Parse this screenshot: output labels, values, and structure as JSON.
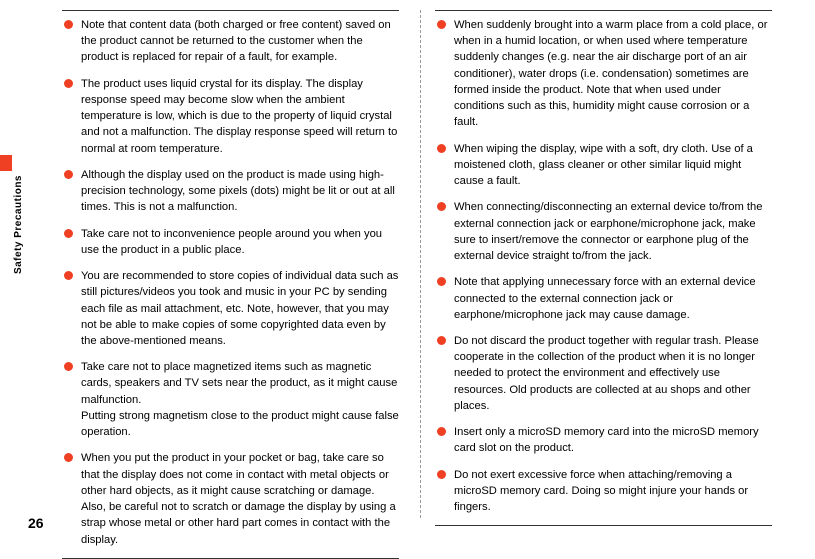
{
  "page_number": "26",
  "sidebar_label": "Safety Precautions",
  "left_col": [
    {
      "text": "Note that content data (both charged or free content) saved on the product cannot be returned to the customer when the product is replaced for repair of a fault, for example."
    },
    {
      "text": "The product uses liquid crystal for its display. The display response speed may become slow when the ambient temperature is low, which is due to the property of liquid crystal and not a malfunction. The display response speed will return to normal at room temperature."
    },
    {
      "text": "Although the display used on the product is made using high-precision technology, some pixels (dots) might be lit or out at all times. This is not a malfunction."
    },
    {
      "text": "Take care not to inconvenience people around you when you use the product in a public place."
    },
    {
      "text": "You are recommended to store copies of individual data such as still pictures/videos you took and music in your PC by sending each file as mail attachment, etc. Note, however, that you may not be able to make copies of some copyrighted data even by the above-mentioned means."
    },
    {
      "text": "Take care not to place magnetized items such as magnetic cards, speakers and TV sets near the product, as it might cause malfunction.",
      "extra": "Putting strong magnetism close to the product might cause false operation."
    },
    {
      "text": "When you put the product in your pocket or bag, take care so that the display does not come in contact with metal objects or other hard objects, as it might cause scratching or damage. Also, be careful not to scratch or damage the display by using a strap whose metal or other hard part comes in contact with the display."
    }
  ],
  "right_col": [
    {
      "text": "When suddenly brought into a warm place from a cold place, or when in a humid location, or when used where temperature suddenly changes (e.g. near the air discharge port of an air conditioner), water drops (i.e. condensation) sometimes are formed inside the product. Note that when used under conditions such as this, humidity might cause corrosion or a fault."
    },
    {
      "text": "When wiping the display, wipe with a soft, dry cloth. Use of a moistened cloth, glass cleaner or other similar liquid might cause a fault."
    },
    {
      "text": "When connecting/disconnecting an external device to/from the external connection jack or earphone/microphone jack, make sure to insert/remove the connector or earphone plug of the external device straight to/from the jack."
    },
    {
      "text": "Note that applying unnecessary force with an external device connected to the external connection jack or earphone/microphone jack may cause damage."
    },
    {
      "text": "Do not discard the product together with regular trash. Please cooperate in the collection of the product when it is no longer needed to protect the environment and effectively use resources. Old products are collected at au shops and other places."
    },
    {
      "text": "Insert only a microSD memory card into the microSD memory card slot on the product."
    },
    {
      "text": "Do not exert excessive force when attaching/removing a microSD memory card. Doing so might injure your hands or fingers."
    }
  ]
}
